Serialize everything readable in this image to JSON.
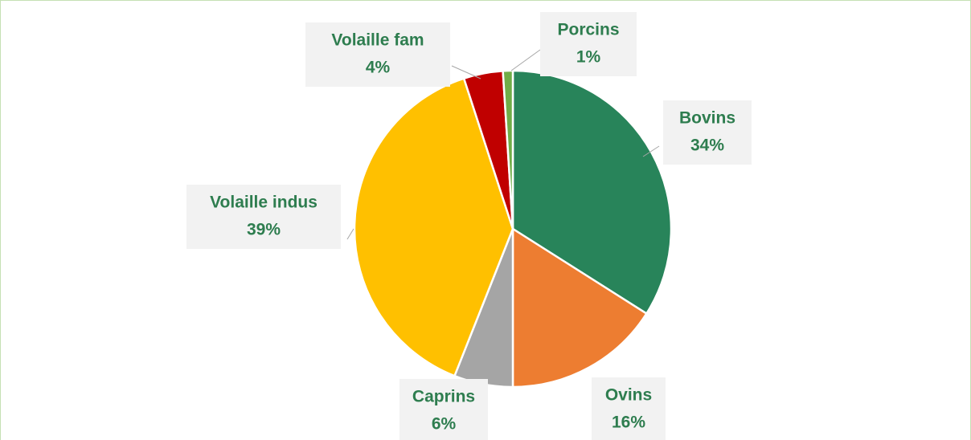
{
  "chart_data": {
    "type": "pie",
    "categories": [
      "Bovins",
      "Ovins",
      "Caprins",
      "Volaille indus",
      "Volaille fam",
      "Porcins"
    ],
    "values": [
      34,
      16,
      6,
      39,
      4,
      1
    ],
    "value_labels": [
      "34%",
      "16%",
      "6%",
      "39%",
      "4%",
      "1%"
    ],
    "colors": [
      "#28845a",
      "#ed7d31",
      "#a5a5a5",
      "#ffc000",
      "#c00000",
      "#70ad47"
    ]
  }
}
